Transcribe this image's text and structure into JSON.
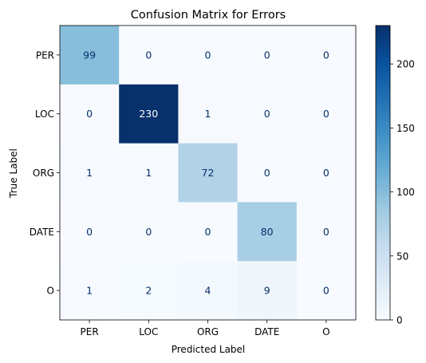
{
  "chart_data": {
    "type": "heatmap",
    "title": "Confusion Matrix for Errors",
    "xlabel": "Predicted Label",
    "ylabel": "True Label",
    "x_categories": [
      "PER",
      "LOC",
      "ORG",
      "DATE",
      "O"
    ],
    "y_categories": [
      "PER",
      "LOC",
      "ORG",
      "DATE",
      "O"
    ],
    "values": [
      [
        99,
        0,
        0,
        0,
        0
      ],
      [
        0,
        230,
        1,
        0,
        0
      ],
      [
        1,
        1,
        72,
        0,
        0
      ],
      [
        0,
        0,
        0,
        80,
        0
      ],
      [
        1,
        2,
        4,
        9,
        0
      ]
    ],
    "colormap": "Blues",
    "colorbar": {
      "min": 0,
      "max": 230,
      "ticks": [
        0,
        50,
        100,
        150,
        200
      ]
    }
  }
}
